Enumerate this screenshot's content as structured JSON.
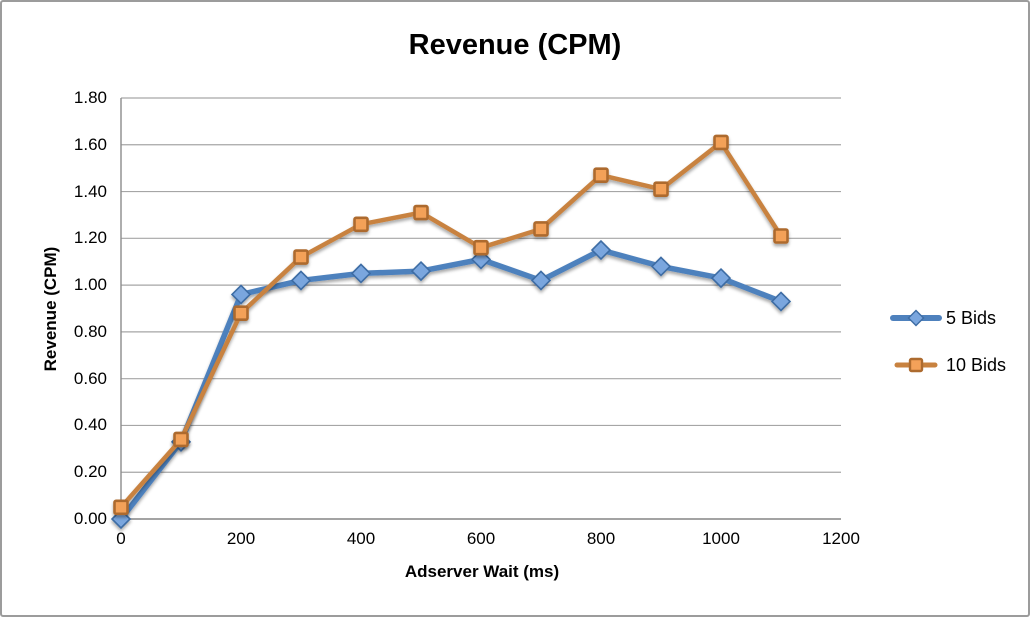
{
  "chart_data": {
    "type": "line",
    "title": "Revenue (CPM)",
    "xlabel": "Adserver Wait (ms)",
    "ylabel": "Revenue (CPM)",
    "x": [
      0,
      100,
      200,
      300,
      400,
      500,
      600,
      700,
      800,
      900,
      1000,
      1100
    ],
    "series": [
      {
        "name": "5 Bids",
        "values": [
          0.0,
          0.33,
          0.96,
          1.02,
          1.05,
          1.06,
          1.11,
          1.02,
          1.15,
          1.08,
          1.03,
          0.93
        ],
        "line_color": "#4e81bd",
        "marker": "diamond",
        "marker_fill": "#7aa6de",
        "marker_stroke": "#3d6ca4",
        "line_width": 5.5
      },
      {
        "name": "10 Bids",
        "values": [
          0.05,
          0.34,
          0.88,
          1.12,
          1.26,
          1.31,
          1.16,
          1.24,
          1.47,
          1.41,
          1.61,
          1.21
        ],
        "line_color": "#c8823f",
        "marker": "square",
        "marker_fill": "#f3a159",
        "marker_stroke": "#ad6b2f",
        "line_width": 4.5
      }
    ],
    "xlim": [
      0,
      1200
    ],
    "ylim": [
      0,
      1.8
    ],
    "x_tick_labels": [
      "0",
      "200",
      "400",
      "600",
      "800",
      "1000",
      "1200"
    ],
    "y_tick_labels": [
      "0.00",
      "0.20",
      "0.40",
      "0.60",
      "0.80",
      "1.00",
      "1.20",
      "1.40",
      "1.60",
      "1.80"
    ],
    "grid": "horizontal",
    "legend_position": "right"
  },
  "colors": {
    "gridline": "#a6a6a6",
    "axis": "#8c8c8c",
    "frame_border": "#9c9c9c",
    "background": "#ffffff",
    "text": "#000000"
  }
}
